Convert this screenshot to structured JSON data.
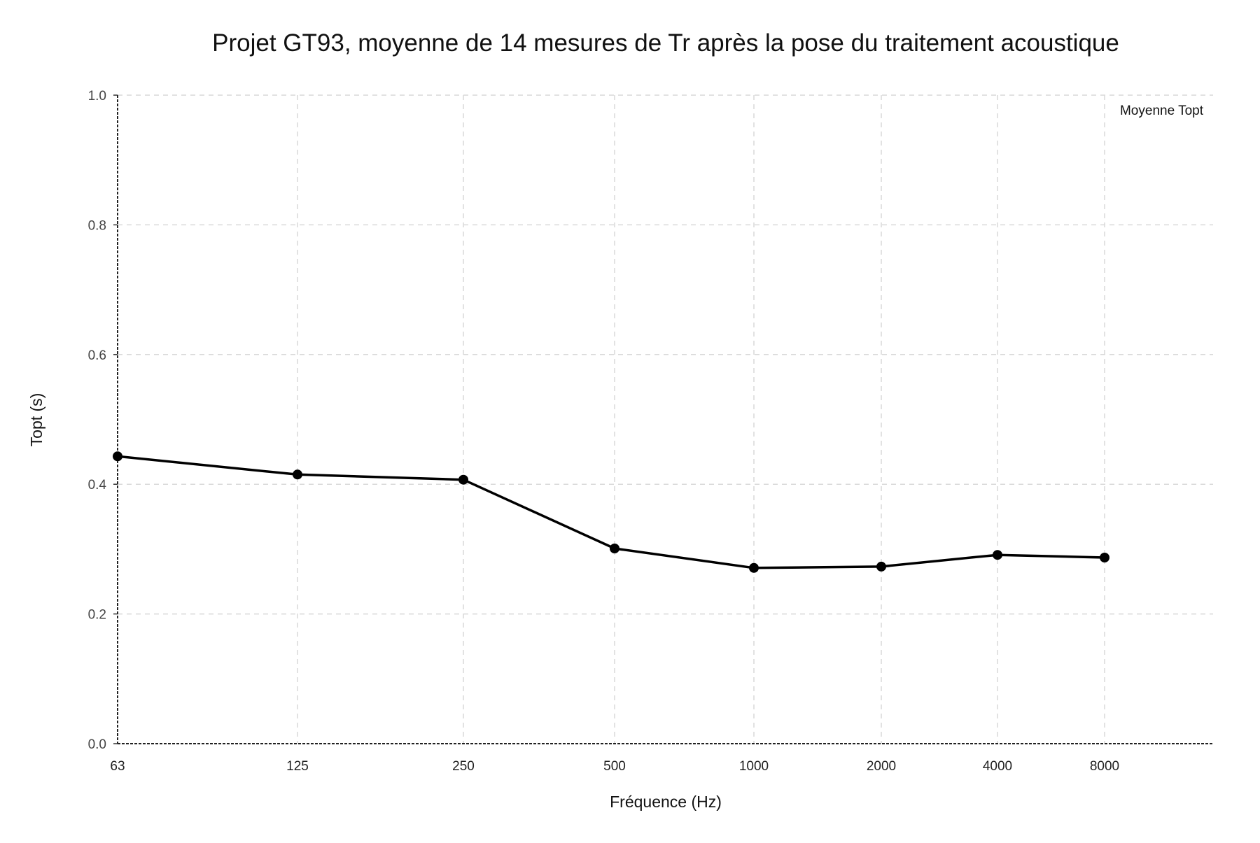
{
  "chart_data": {
    "type": "line",
    "title": "Projet GT93, moyenne de 14 mesures de Tr après la pose du traitement acoustique",
    "xlabel": "Fréquence (Hz)",
    "ylabel": "Topt (s)",
    "x_scale": "log2",
    "categories": [
      "63",
      "125",
      "250",
      "500",
      "1000",
      "2000",
      "4000",
      "8000"
    ],
    "x": [
      63,
      125,
      250,
      500,
      1000,
      2000,
      4000,
      8000
    ],
    "ylim": [
      0,
      1.0
    ],
    "yticks": [
      "0.0",
      "0.2",
      "0.4",
      "0.6",
      "0.8",
      "1.0"
    ],
    "grid": true,
    "legend_position": "top-right",
    "series": [
      {
        "name": "Moyenne Topt",
        "color": "#000000",
        "values": [
          0.443,
          0.415,
          0.407,
          0.301,
          0.271,
          0.273,
          0.291,
          0.287
        ]
      }
    ]
  }
}
